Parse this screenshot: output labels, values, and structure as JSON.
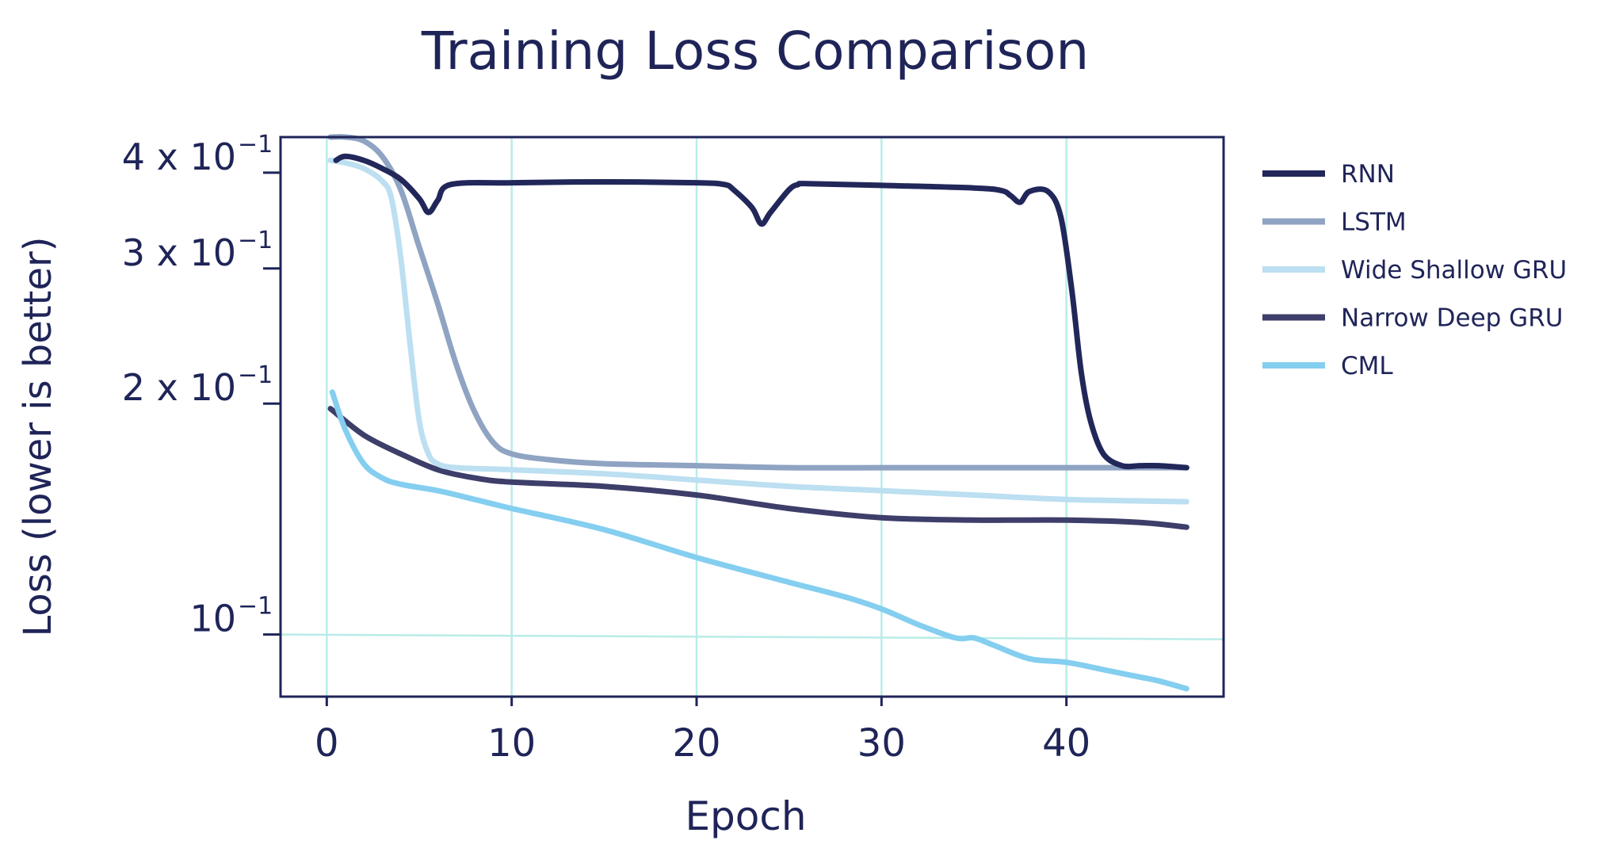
{
  "chart_data": {
    "type": "line",
    "title": "Training Loss Comparison",
    "xlabel": "Epoch",
    "ylabel": "Loss (lower is better)",
    "xlim": [
      -2.5,
      48.5
    ],
    "ylim": [
      0.083,
      0.445
    ],
    "yscale": "log",
    "grid": "vertical lines at x ticks and horizontal line at 10^-1",
    "legend_position": "right (outside plot)",
    "x_ticks": [
      0,
      10,
      20,
      30,
      40
    ],
    "y_ticks": [
      {
        "value": 0.4,
        "mantissa": "4 x 10",
        "exponent": "−1"
      },
      {
        "value": 0.3,
        "mantissa": "3 x 10",
        "exponent": "−1"
      },
      {
        "value": 0.2,
        "mantissa": "2 x 10",
        "exponent": "−1"
      },
      {
        "value": 0.1,
        "mantissa": "10",
        "exponent": "−1"
      }
    ],
    "series": [
      {
        "name": "RNN",
        "color": "#22275a",
        "x": [
          0.5,
          1,
          2,
          3,
          4,
          5,
          5.5,
          6,
          6.7,
          10,
          15,
          20,
          21.5,
          22,
          23,
          23.5,
          24,
          25,
          25.5,
          26,
          30,
          35,
          36.5,
          37,
          37.5,
          38,
          39,
          39.7,
          40.3,
          40.8,
          41.3,
          42,
          43,
          44,
          45,
          46.5
        ],
        "y": [
          0.415,
          0.42,
          0.415,
          0.405,
          0.392,
          0.37,
          0.355,
          0.368,
          0.386,
          0.388,
          0.389,
          0.388,
          0.386,
          0.38,
          0.36,
          0.343,
          0.355,
          0.38,
          0.386,
          0.387,
          0.385,
          0.382,
          0.379,
          0.373,
          0.366,
          0.378,
          0.378,
          0.35,
          0.28,
          0.22,
          0.19,
          0.172,
          0.166,
          0.166,
          0.166,
          0.165
        ]
      },
      {
        "name": "LSTM",
        "color": "#8fa3c2",
        "x": [
          0.2,
          1,
          2,
          3,
          4,
          5,
          6,
          7,
          8,
          9,
          10,
          12,
          15,
          20,
          25,
          30,
          35,
          40,
          46.5
        ],
        "y": [
          0.445,
          0.445,
          0.44,
          0.42,
          0.38,
          0.32,
          0.27,
          0.225,
          0.195,
          0.178,
          0.172,
          0.169,
          0.167,
          0.166,
          0.165,
          0.165,
          0.165,
          0.165,
          0.165
        ]
      },
      {
        "name": "Wide Shallow GRU",
        "color": "#bcdff1",
        "x": [
          0.2,
          1,
          2,
          3,
          3.5,
          4,
          4.5,
          5,
          5.5,
          6,
          7,
          10,
          15,
          20,
          25,
          30,
          35,
          40,
          46.5
        ],
        "y": [
          0.415,
          0.412,
          0.405,
          0.39,
          0.37,
          0.31,
          0.24,
          0.19,
          0.172,
          0.167,
          0.165,
          0.164,
          0.162,
          0.159,
          0.156,
          0.154,
          0.152,
          0.15,
          0.149
        ]
      },
      {
        "name": "Narrow Deep GRU",
        "color": "#3d3e69",
        "x": [
          0.2,
          2,
          4,
          6,
          8,
          10,
          15,
          20,
          25,
          30,
          35,
          40,
          44,
          46.5
        ],
        "y": [
          0.197,
          0.182,
          0.172,
          0.164,
          0.16,
          0.158,
          0.156,
          0.152,
          0.146,
          0.142,
          0.141,
          0.141,
          0.14,
          0.138
        ]
      },
      {
        "name": "CML",
        "color": "#84cef0",
        "x": [
          0.3,
          1,
          2,
          3,
          4,
          6,
          8,
          10,
          15,
          20,
          25,
          28,
          30,
          32,
          34,
          35,
          36,
          38,
          40,
          42,
          44,
          45,
          46.5
        ],
        "y": [
          0.207,
          0.185,
          0.167,
          0.16,
          0.157,
          0.154,
          0.15,
          0.146,
          0.137,
          0.126,
          0.117,
          0.112,
          0.108,
          0.103,
          0.099,
          0.099,
          0.097,
          0.093,
          0.092,
          0.09,
          0.088,
          0.087,
          0.085
        ]
      }
    ]
  }
}
